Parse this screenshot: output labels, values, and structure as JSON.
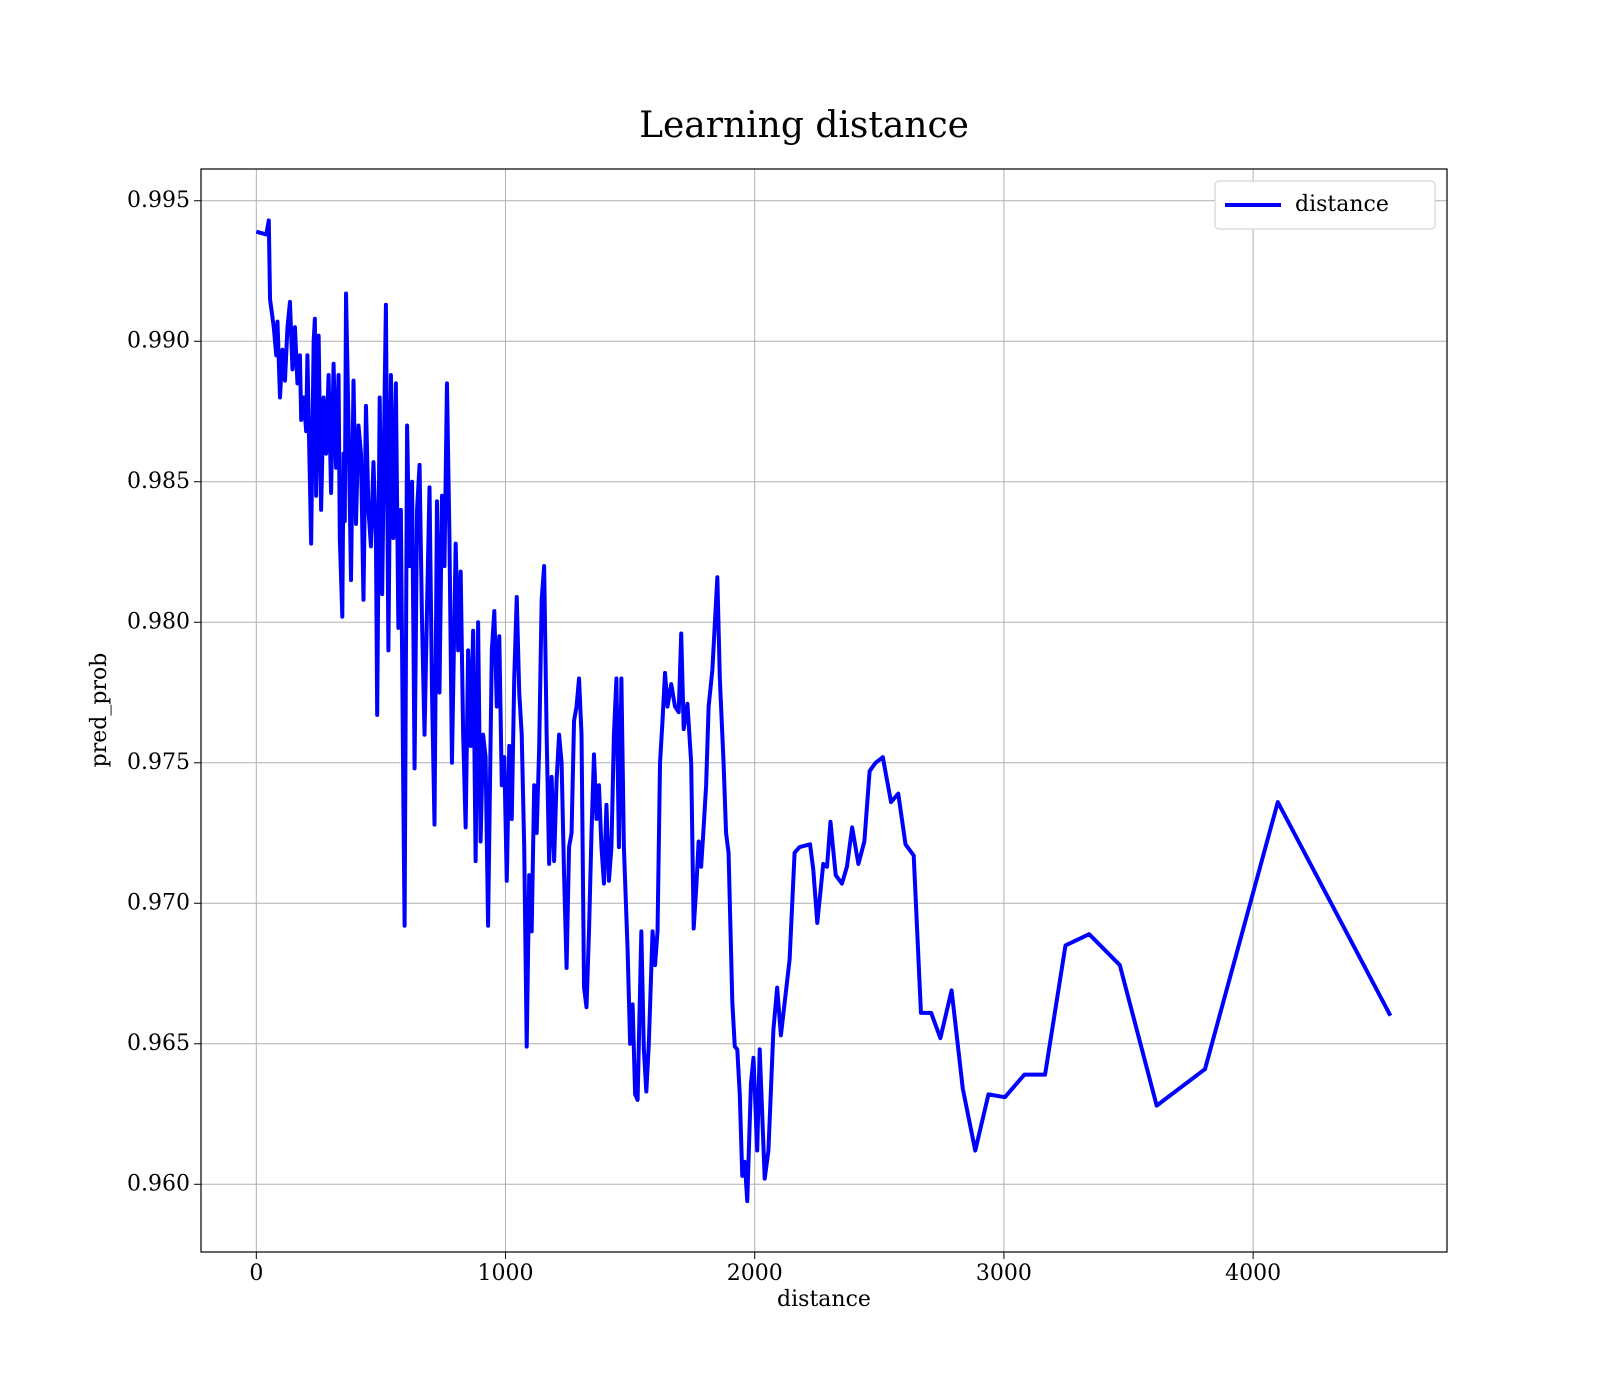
{
  "chart_data": {
    "type": "line",
    "title": "Learning distance",
    "x_label": "distance",
    "y_label": "pred_prob",
    "legend": "upper right",
    "grid": true,
    "xlim": [
      -222,
      4778
    ],
    "ylim": [
      0.95759,
      0.99613
    ],
    "xticks": [
      0,
      1000,
      2000,
      3000,
      4000
    ],
    "yticks": [
      {
        "value": 0.96,
        "label": "0.960"
      },
      0.965,
      {
        "value": 0.97,
        "label": "0.970"
      },
      0.975,
      {
        "value": 0.98,
        "label": "0.980"
      },
      0.985,
      {
        "value": 0.99,
        "label": "0.990"
      },
      0.995
    ],
    "x": [
      0,
      40,
      50,
      55,
      70,
      80,
      85,
      95,
      105,
      115,
      125,
      135,
      145,
      155,
      165,
      175,
      180,
      190,
      200,
      205,
      215,
      220,
      230,
      235,
      240,
      250,
      260,
      270,
      280,
      290,
      300,
      310,
      320,
      330,
      335,
      345,
      350,
      355,
      360,
      370,
      380,
      390,
      400,
      410,
      420,
      430,
      440,
      450,
      460,
      470,
      480,
      485,
      495,
      505,
      515,
      520,
      530,
      540,
      550,
      560,
      570,
      580,
      590,
      595,
      605,
      615,
      625,
      635,
      645,
      655,
      665,
      675,
      685,
      695,
      705,
      715,
      725,
      735,
      745,
      755,
      765,
      775,
      785,
      800,
      810,
      820,
      830,
      840,
      850,
      860,
      870,
      880,
      890,
      900,
      910,
      920,
      930,
      945,
      955,
      965,
      975,
      985,
      995,
      1005,
      1015,
      1025,
      1035,
      1045,
      1055,
      1065,
      1075,
      1085,
      1095,
      1105,
      1115,
      1125,
      1135,
      1145,
      1155,
      1165,
      1175,
      1185,
      1195,
      1205,
      1215,
      1225,
      1235,
      1245,
      1255,
      1265,
      1275,
      1285,
      1295,
      1305,
      1315,
      1325,
      1335,
      1345,
      1355,
      1365,
      1375,
      1385,
      1395,
      1405,
      1415,
      1425,
      1435,
      1445,
      1455,
      1465,
      1475,
      1490,
      1500,
      1510,
      1520,
      1530,
      1545,
      1555,
      1565,
      1575,
      1590,
      1600,
      1610,
      1620,
      1630,
      1640,
      1650,
      1665,
      1680,
      1695,
      1705,
      1715,
      1730,
      1745,
      1755,
      1765,
      1775,
      1785,
      1795,
      1805,
      1815,
      1830,
      1850,
      1860,
      1875,
      1885,
      1895,
      1910,
      1920,
      1930,
      1940,
      1950,
      1960,
      1970,
      1985,
      1995,
      2010,
      2020,
      2040,
      2055,
      2075,
      2090,
      2105,
      2140,
      2160,
      2180,
      2222,
      2235,
      2251,
      2275,
      2290,
      2304,
      2325,
      2350,
      2370,
      2391,
      2416,
      2440,
      2461,
      2485,
      2514,
      2547,
      2576,
      2605,
      2638,
      2667,
      2708,
      2745,
      2790,
      2835,
      2885,
      2938,
      3004,
      3082,
      3165,
      3247,
      3342,
      3465,
      3613,
      3807,
      4099,
      4551
    ],
    "series": [
      {
        "name": "distance",
        "color": "#0000ff",
        "values": [
          0.9939,
          0.9938,
          0.9943,
          0.9915,
          0.9905,
          0.9895,
          0.9907,
          0.988,
          0.9897,
          0.9886,
          0.9905,
          0.9914,
          0.989,
          0.9905,
          0.9885,
          0.9895,
          0.9872,
          0.988,
          0.9868,
          0.9895,
          0.985,
          0.9828,
          0.99,
          0.9908,
          0.9845,
          0.9902,
          0.984,
          0.988,
          0.986,
          0.9888,
          0.9846,
          0.9892,
          0.9855,
          0.9888,
          0.983,
          0.9802,
          0.986,
          0.9836,
          0.9917,
          0.987,
          0.9815,
          0.9886,
          0.9835,
          0.987,
          0.986,
          0.9808,
          0.9877,
          0.984,
          0.9827,
          0.9857,
          0.983,
          0.9767,
          0.988,
          0.981,
          0.9882,
          0.9913,
          0.979,
          0.9888,
          0.983,
          0.9885,
          0.9798,
          0.984,
          0.9737,
          0.9692,
          0.987,
          0.982,
          0.985,
          0.9748,
          0.984,
          0.9856,
          0.98,
          0.976,
          0.9805,
          0.9848,
          0.9775,
          0.9728,
          0.9843,
          0.9775,
          0.9845,
          0.982,
          0.9885,
          0.983,
          0.975,
          0.9828,
          0.979,
          0.9818,
          0.976,
          0.9727,
          0.979,
          0.9756,
          0.9797,
          0.9715,
          0.98,
          0.9722,
          0.976,
          0.9752,
          0.9692,
          0.979,
          0.9804,
          0.977,
          0.9795,
          0.9742,
          0.9752,
          0.9708,
          0.9756,
          0.973,
          0.978,
          0.9809,
          0.9775,
          0.976,
          0.972,
          0.9649,
          0.971,
          0.969,
          0.9742,
          0.9725,
          0.9755,
          0.9808,
          0.982,
          0.976,
          0.9714,
          0.9745,
          0.9715,
          0.9744,
          0.976,
          0.975,
          0.971,
          0.9677,
          0.972,
          0.9725,
          0.9765,
          0.977,
          0.978,
          0.976,
          0.967,
          0.9663,
          0.969,
          0.9725,
          0.9753,
          0.973,
          0.9742,
          0.972,
          0.9707,
          0.9735,
          0.9708,
          0.972,
          0.976,
          0.978,
          0.972,
          0.978,
          0.972,
          0.9683,
          0.965,
          0.9664,
          0.9632,
          0.963,
          0.969,
          0.9648,
          0.9633,
          0.965,
          0.969,
          0.9678,
          0.969,
          0.975,
          0.9765,
          0.9782,
          0.977,
          0.9778,
          0.977,
          0.9768,
          0.9796,
          0.9762,
          0.9771,
          0.975,
          0.9691,
          0.9705,
          0.9722,
          0.9713,
          0.9727,
          0.9742,
          0.977,
          0.9783,
          0.9816,
          0.978,
          0.975,
          0.9725,
          0.9718,
          0.9665,
          0.9649,
          0.9648,
          0.9632,
          0.9603,
          0.9608,
          0.9594,
          0.9636,
          0.9645,
          0.9612,
          0.9648,
          0.9602,
          0.9612,
          0.9655,
          0.967,
          0.9653,
          0.968,
          0.9718,
          0.972,
          0.9721,
          0.9712,
          0.9693,
          0.9714,
          0.9713,
          0.9729,
          0.971,
          0.9707,
          0.9713,
          0.9727,
          0.9714,
          0.9722,
          0.9747,
          0.975,
          0.9752,
          0.9736,
          0.9739,
          0.9721,
          0.9717,
          0.9661,
          0.9661,
          0.9652,
          0.9669,
          0.9634,
          0.9612,
          0.9632,
          0.9631,
          0.9639,
          0.9639,
          0.9685,
          0.9689,
          0.9678,
          0.9628,
          0.9641,
          0.9736,
          0.966
        ]
      }
    ]
  }
}
